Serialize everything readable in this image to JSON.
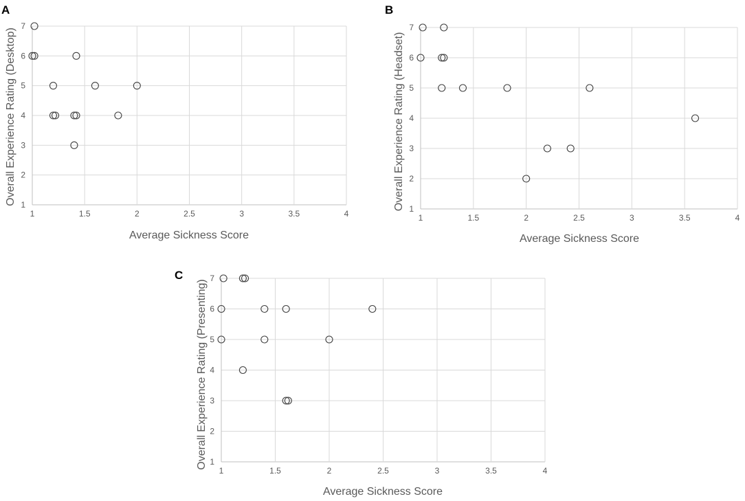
{
  "chart_data": [
    {
      "type": "scatter",
      "panel": "A",
      "title": "",
      "xlabel": "Average Sickness Score",
      "ylabel": "Overall Experience Rating (Desktop)",
      "xlim": [
        1,
        4
      ],
      "ylim": [
        1,
        7
      ],
      "xticks": [
        "1",
        "1.5",
        "2",
        "2.5",
        "3",
        "3.5",
        "4"
      ],
      "yticks": [
        "1",
        "2",
        "3",
        "4",
        "5",
        "6",
        "7"
      ],
      "x": [
        1.02,
        1.0,
        1.02,
        1.42,
        1.2,
        1.6,
        2.0,
        1.2,
        1.22,
        1.4,
        1.42,
        1.82,
        1.4
      ],
      "y": [
        7,
        6,
        6,
        6,
        5,
        5,
        5,
        4,
        4,
        4,
        4,
        4,
        3
      ]
    },
    {
      "type": "scatter",
      "panel": "B",
      "title": "",
      "xlabel": "Average Sickness Score",
      "ylabel": "Overall Experience Rating (Headset)",
      "xlim": [
        1,
        4
      ],
      "ylim": [
        1,
        7
      ],
      "xticks": [
        "1",
        "1.5",
        "2",
        "2.5",
        "3",
        "3.5",
        "4"
      ],
      "yticks": [
        "1",
        "2",
        "3",
        "4",
        "5",
        "6",
        "7"
      ],
      "x": [
        1.02,
        1.22,
        1.0,
        1.2,
        1.22,
        1.2,
        1.4,
        1.82,
        2.6,
        3.6,
        2.2,
        2.42,
        2.0
      ],
      "y": [
        7,
        7,
        6,
        6,
        6,
        5,
        5,
        5,
        5,
        4,
        3,
        3,
        2
      ]
    },
    {
      "type": "scatter",
      "panel": "C",
      "title": "",
      "xlabel": "Average Sickness Score",
      "ylabel": "Overall Experience Rating (Presenting)",
      "xlim": [
        1,
        4
      ],
      "ylim": [
        1,
        7
      ],
      "xticks": [
        "1",
        "1.5",
        "2",
        "2.5",
        "3",
        "3.5",
        "4"
      ],
      "yticks": [
        "1",
        "2",
        "3",
        "4",
        "5",
        "6",
        "7"
      ],
      "x": [
        1.02,
        1.2,
        1.22,
        1.0,
        1.4,
        1.6,
        2.4,
        1.0,
        1.4,
        2.0,
        1.2,
        1.6,
        1.62
      ],
      "y": [
        7,
        7,
        7,
        6,
        6,
        6,
        6,
        5,
        5,
        5,
        4,
        3,
        3
      ]
    }
  ]
}
